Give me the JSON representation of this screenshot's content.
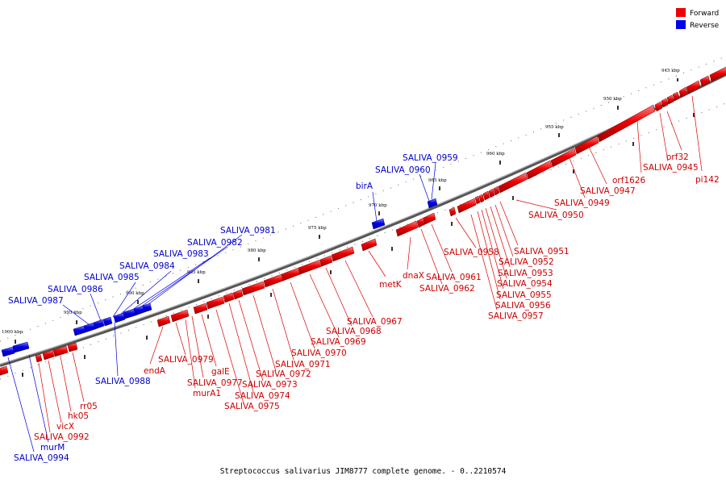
{
  "caption": "Streptococcus salivarius JIM8777 complete genome. - 0..2210574",
  "legend": [
    {
      "label": "Forward",
      "color": "#ee0000"
    },
    {
      "label": "Reverse",
      "color": "#0000ee"
    }
  ],
  "scale": [
    "945 kbp",
    "950 kbp",
    "955 kbp",
    "960 kbp",
    "965 kbp",
    "970 kbp",
    "975 kbp",
    "980 kbp",
    "985 kbp",
    "990 kbp",
    "995 kbp",
    "1000 kbp"
  ],
  "gene_labels": [
    {
      "id": "orf32",
      "strand": "forward"
    },
    {
      "id": "SALIVA_0945",
      "strand": "forward"
    },
    {
      "id": "pi142",
      "strand": "forward"
    },
    {
      "id": "orf1626",
      "strand": "forward"
    },
    {
      "id": "SALIVA_0947",
      "strand": "forward"
    },
    {
      "id": "SALIVA_0949",
      "strand": "forward"
    },
    {
      "id": "SALIVA_0950",
      "strand": "forward"
    },
    {
      "id": "SALIVA_0951",
      "strand": "forward"
    },
    {
      "id": "SALIVA_0952",
      "strand": "forward"
    },
    {
      "id": "SALIVA_0953",
      "strand": "forward"
    },
    {
      "id": "SALIVA_0954",
      "strand": "forward"
    },
    {
      "id": "SALIVA_0955",
      "strand": "forward"
    },
    {
      "id": "SALIVA_0956",
      "strand": "forward"
    },
    {
      "id": "SALIVA_0957",
      "strand": "forward"
    },
    {
      "id": "SALIVA_0958",
      "strand": "forward"
    },
    {
      "id": "SALIVA_0961",
      "strand": "forward"
    },
    {
      "id": "SALIVA_0962",
      "strand": "forward"
    },
    {
      "id": "dnaX",
      "strand": "forward"
    },
    {
      "id": "metK",
      "strand": "forward"
    },
    {
      "id": "SALIVA_0967",
      "strand": "forward"
    },
    {
      "id": "SALIVA_0968",
      "strand": "forward"
    },
    {
      "id": "SALIVA_0969",
      "strand": "forward"
    },
    {
      "id": "SALIVA_0970",
      "strand": "forward"
    },
    {
      "id": "SALIVA_0971",
      "strand": "forward"
    },
    {
      "id": "SALIVA_0972",
      "strand": "forward"
    },
    {
      "id": "SALIVA_0973",
      "strand": "forward"
    },
    {
      "id": "SALIVA_0974",
      "strand": "forward"
    },
    {
      "id": "SALIVA_0975",
      "strand": "forward"
    },
    {
      "id": "galE",
      "strand": "forward"
    },
    {
      "id": "SALIVA_0977",
      "strand": "forward"
    },
    {
      "id": "murA1",
      "strand": "forward"
    },
    {
      "id": "SALIVA_0979",
      "strand": "forward"
    },
    {
      "id": "endA",
      "strand": "forward"
    },
    {
      "id": "rr05",
      "strand": "forward"
    },
    {
      "id": "hk05",
      "strand": "forward"
    },
    {
      "id": "vicX",
      "strand": "forward"
    },
    {
      "id": "SALIVA_0992",
      "strand": "forward"
    },
    {
      "id": "murM",
      "strand": "reverse"
    },
    {
      "id": "SALIVA_0994",
      "strand": "reverse"
    },
    {
      "id": "SALIVA_0959",
      "strand": "reverse"
    },
    {
      "id": "SALIVA_0960",
      "strand": "reverse"
    },
    {
      "id": "birA",
      "strand": "reverse"
    },
    {
      "id": "SALIVA_0981",
      "strand": "reverse"
    },
    {
      "id": "SALIVA_0982",
      "strand": "reverse"
    },
    {
      "id": "SALIVA_0983",
      "strand": "reverse"
    },
    {
      "id": "SALIVA_0984",
      "strand": "reverse"
    },
    {
      "id": "SALIVA_0985",
      "strand": "reverse"
    },
    {
      "id": "SALIVA_0986",
      "strand": "reverse"
    },
    {
      "id": "SALIVA_0987",
      "strand": "reverse"
    },
    {
      "id": "SALIVA_0988",
      "strand": "reverse"
    }
  ]
}
